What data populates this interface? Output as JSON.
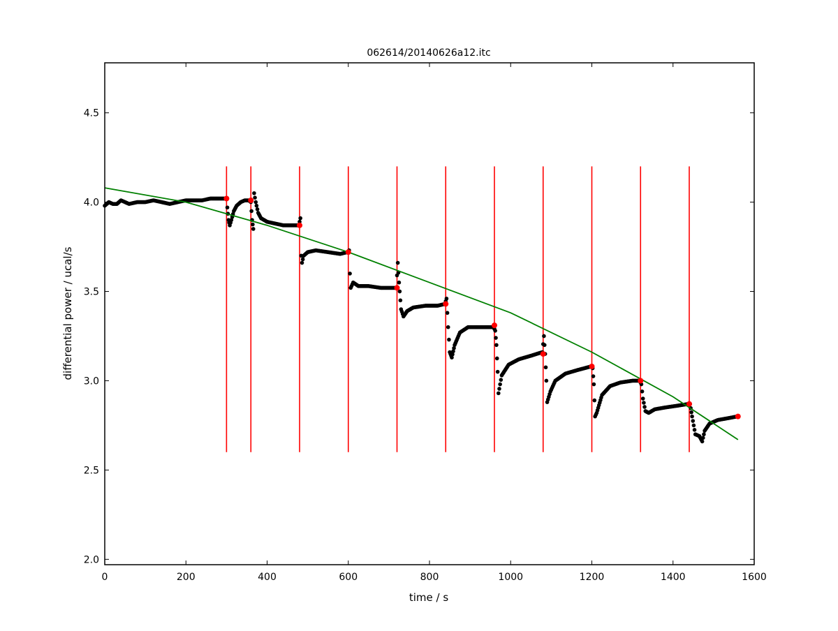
{
  "chart_data": {
    "type": "scatter",
    "title": "062614/20140626a12.itc",
    "xlabel": "time / s",
    "ylabel": "differential power / ucal/s",
    "xlim": [
      0,
      1600
    ],
    "ylim": [
      1.97,
      4.78
    ],
    "xticks": [
      "0",
      "200",
      "400",
      "600",
      "800",
      "1000",
      "1200",
      "1400",
      "1600"
    ],
    "xtick_values": [
      0,
      200,
      400,
      600,
      800,
      1000,
      1200,
      1400,
      1600
    ],
    "yticks": [
      "2.0",
      "2.5",
      "3.0",
      "3.5",
      "4.0",
      "4.5"
    ],
    "ytick_values": [
      2.0,
      2.5,
      3.0,
      3.5,
      4.0,
      4.5
    ],
    "grid": false,
    "legend": "none",
    "colors": {
      "data": "#000000",
      "markers": "#ff0000",
      "vlines": "#ff0000",
      "baseline": "#008000"
    },
    "signal_series": {
      "points": [
        [
          0,
          3.98
        ],
        [
          10,
          4.0
        ],
        [
          20,
          3.99
        ],
        [
          30,
          3.99
        ],
        [
          40,
          4.01
        ],
        [
          50,
          4.0
        ],
        [
          60,
          3.99
        ],
        [
          80,
          4.0
        ],
        [
          100,
          4.0
        ],
        [
          120,
          4.01
        ],
        [
          140,
          4.0
        ],
        [
          160,
          3.99
        ],
        [
          180,
          4.0
        ],
        [
          200,
          4.01
        ],
        [
          220,
          4.01
        ],
        [
          240,
          4.01
        ],
        [
          260,
          4.02
        ],
        [
          280,
          4.02
        ],
        [
          300,
          4.02
        ],
        [
          302,
          3.97
        ],
        [
          305,
          3.9
        ],
        [
          308,
          3.87
        ],
        [
          312,
          3.9
        ],
        [
          318,
          3.95
        ],
        [
          325,
          3.98
        ],
        [
          335,
          4.0
        ],
        [
          345,
          4.01
        ],
        [
          355,
          4.01
        ],
        [
          360,
          4.0
        ],
        [
          363,
          3.9
        ],
        [
          366,
          3.85
        ],
        [
          368,
          4.05
        ],
        [
          372,
          4.0
        ],
        [
          378,
          3.94
        ],
        [
          385,
          3.91
        ],
        [
          400,
          3.89
        ],
        [
          420,
          3.88
        ],
        [
          440,
          3.87
        ],
        [
          460,
          3.87
        ],
        [
          478,
          3.87
        ],
        [
          482,
          3.91
        ],
        [
          484,
          3.7
        ],
        [
          486,
          3.66
        ],
        [
          490,
          3.7
        ],
        [
          500,
          3.72
        ],
        [
          520,
          3.73
        ],
        [
          550,
          3.72
        ],
        [
          580,
          3.71
        ],
        [
          598,
          3.72
        ],
        [
          602,
          3.73
        ],
        [
          604,
          3.6
        ],
        [
          606,
          3.52
        ],
        [
          612,
          3.55
        ],
        [
          625,
          3.53
        ],
        [
          650,
          3.53
        ],
        [
          680,
          3.52
        ],
        [
          700,
          3.52
        ],
        [
          718,
          3.52
        ],
        [
          722,
          3.66
        ],
        [
          725,
          3.55
        ],
        [
          730,
          3.4
        ],
        [
          736,
          3.36
        ],
        [
          745,
          3.39
        ],
        [
          760,
          3.41
        ],
        [
          790,
          3.42
        ],
        [
          820,
          3.42
        ],
        [
          838,
          3.43
        ],
        [
          842,
          3.46
        ],
        [
          846,
          3.3
        ],
        [
          850,
          3.16
        ],
        [
          855,
          3.13
        ],
        [
          862,
          3.2
        ],
        [
          875,
          3.27
        ],
        [
          895,
          3.3
        ],
        [
          920,
          3.3
        ],
        [
          958,
          3.3
        ],
        [
          962,
          3.28
        ],
        [
          965,
          3.2
        ],
        [
          968,
          3.05
        ],
        [
          970,
          2.93
        ],
        [
          978,
          3.03
        ],
        [
          995,
          3.09
        ],
        [
          1020,
          3.12
        ],
        [
          1050,
          3.14
        ],
        [
          1078,
          3.16
        ],
        [
          1082,
          3.25
        ],
        [
          1085,
          3.15
        ],
        [
          1088,
          3.0
        ],
        [
          1090,
          2.88
        ],
        [
          1098,
          2.94
        ],
        [
          1110,
          3.0
        ],
        [
          1135,
          3.04
        ],
        [
          1165,
          3.06
        ],
        [
          1198,
          3.08
        ],
        [
          1202,
          3.07
        ],
        [
          1205,
          2.98
        ],
        [
          1208,
          2.8
        ],
        [
          1212,
          2.82
        ],
        [
          1225,
          2.92
        ],
        [
          1245,
          2.97
        ],
        [
          1270,
          2.99
        ],
        [
          1300,
          3.0
        ],
        [
          1318,
          3.0
        ],
        [
          1322,
          2.98
        ],
        [
          1326,
          2.9
        ],
        [
          1332,
          2.83
        ],
        [
          1340,
          2.82
        ],
        [
          1355,
          2.84
        ],
        [
          1380,
          2.85
        ],
        [
          1410,
          2.86
        ],
        [
          1438,
          2.87
        ],
        [
          1442,
          2.87
        ],
        [
          1447,
          2.8
        ],
        [
          1455,
          2.7
        ],
        [
          1465,
          2.69
        ],
        [
          1472,
          2.66
        ],
        [
          1478,
          2.72
        ],
        [
          1490,
          2.76
        ],
        [
          1510,
          2.78
        ],
        [
          1535,
          2.79
        ],
        [
          1558,
          2.8
        ]
      ]
    },
    "baseline_points": {
      "x": [
        300,
        360,
        480,
        600,
        720,
        840,
        960,
        1080,
        1200,
        1320,
        1440,
        1560
      ],
      "y": [
        4.02,
        4.01,
        3.87,
        3.72,
        3.52,
        3.43,
        3.31,
        3.15,
        3.08,
        3.0,
        2.87,
        2.8
      ]
    },
    "injection_lines": {
      "x": [
        300,
        360,
        480,
        600,
        720,
        840,
        960,
        1080,
        1200,
        1320,
        1440
      ],
      "ymin": 2.6,
      "ymax": 4.2
    },
    "baseline_fit": {
      "x": [
        0,
        200,
        400,
        600,
        800,
        1000,
        1200,
        1400,
        1560
      ],
      "y": [
        4.08,
        4.0,
        3.87,
        3.72,
        3.55,
        3.38,
        3.16,
        2.91,
        2.67
      ]
    }
  }
}
